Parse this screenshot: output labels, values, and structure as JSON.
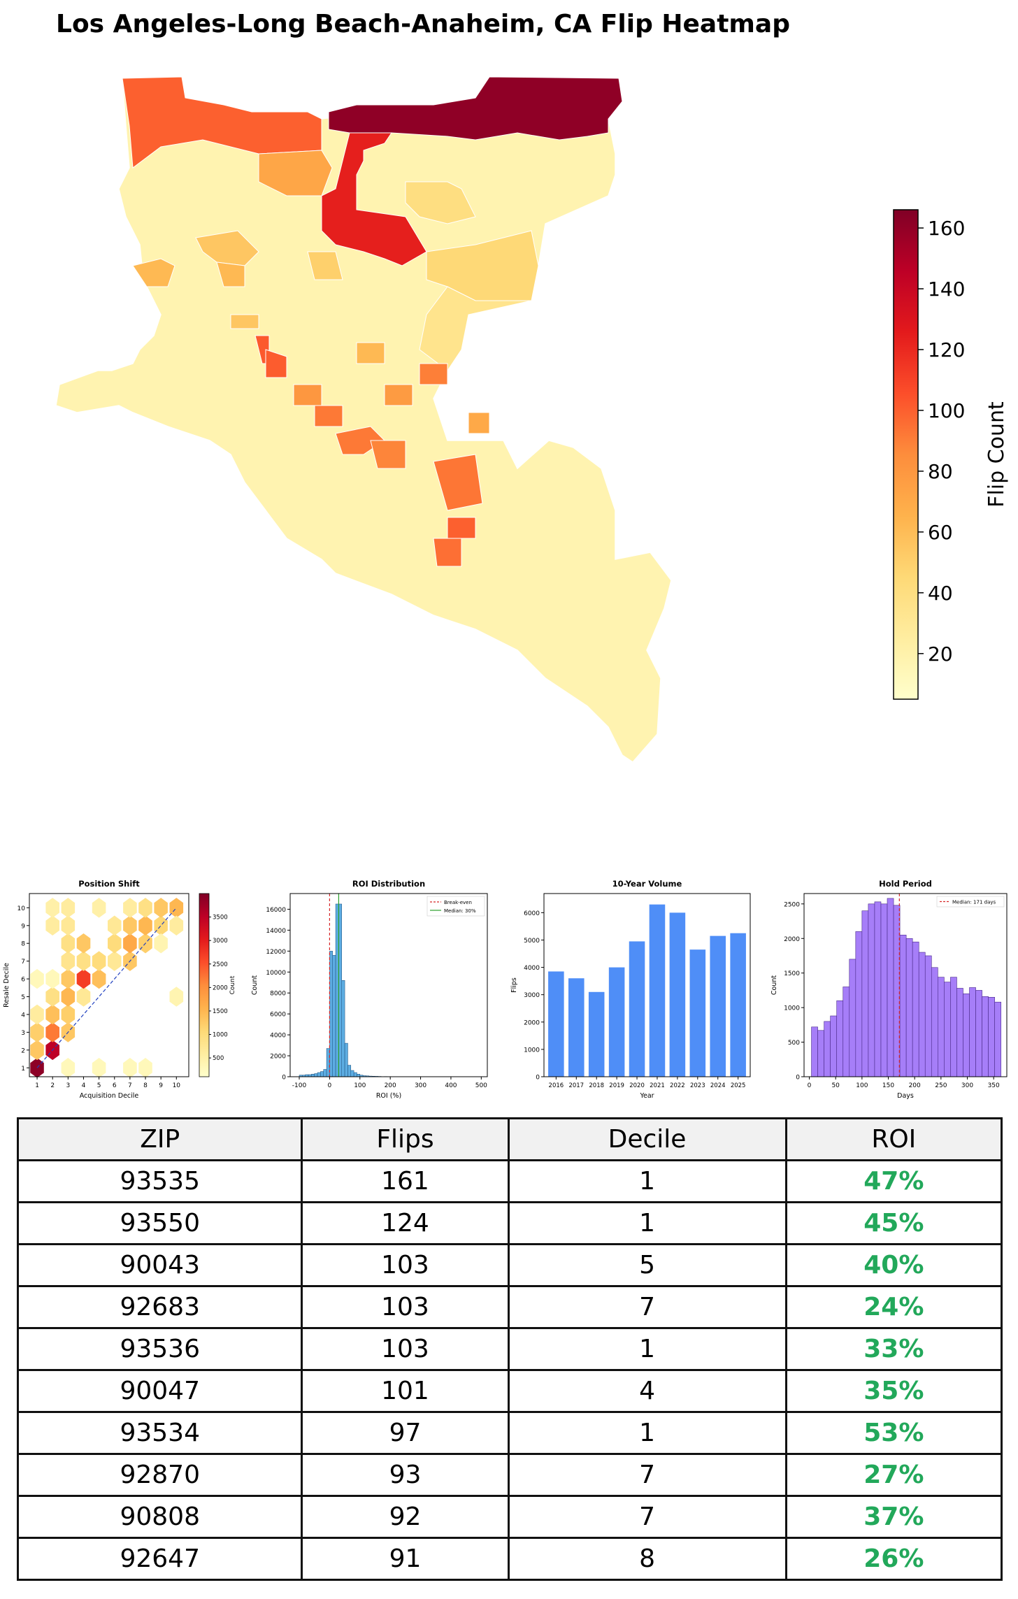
{
  "page": {
    "title": "Los Angeles-Long Beach-Anaheim, CA Flip Heatmap"
  },
  "colors": {
    "ylorrd": [
      "#ffffcc",
      "#ffeda0",
      "#fed976",
      "#feb24c",
      "#fd8d3c",
      "#fc4e2a",
      "#e31a1c",
      "#bd0026",
      "#800026"
    ],
    "roi_green": "#22a85a",
    "hist_blue": "#5dade2",
    "bar_blue": "#4f8ef7",
    "hold_purple": "#a67ef8",
    "median_red": "#d62728",
    "median_green": "#2ca02c",
    "diag_line": "#1f3fbf"
  },
  "map": {
    "colorbar": {
      "label": "Flip Count",
      "ticks": [
        20,
        40,
        60,
        80,
        100,
        120,
        140,
        160
      ],
      "range": [
        5,
        166
      ]
    }
  },
  "chart_data": [
    {
      "type": "heatmap",
      "title": "Position Shift",
      "xlabel": "Acquisition Decile",
      "ylabel": "Resale Decile",
      "xticks": [
        1,
        2,
        3,
        4,
        5,
        6,
        7,
        8,
        9,
        10
      ],
      "yticks": [
        1,
        2,
        3,
        4,
        5,
        6,
        7,
        8,
        9,
        10
      ],
      "colorbar_label": "Count",
      "colorbar_ticks": [
        500,
        1000,
        1500,
        2000,
        2500,
        3000,
        3500
      ],
      "colorbar_range": [
        100,
        4000
      ],
      "reference_line": "y = x (dashed)",
      "cells": [
        {
          "x": 1,
          "y": 1,
          "v": 3900
        },
        {
          "x": 2,
          "y": 2,
          "v": 3500
        },
        {
          "x": 1,
          "y": 2,
          "v": 1300
        },
        {
          "x": 2,
          "y": 3,
          "v": 2200
        },
        {
          "x": 1,
          "y": 3,
          "v": 1200
        },
        {
          "x": 3,
          "y": 3,
          "v": 1300
        },
        {
          "x": 2,
          "y": 4,
          "v": 1400
        },
        {
          "x": 3,
          "y": 4,
          "v": 1200
        },
        {
          "x": 1,
          "y": 4,
          "v": 600
        },
        {
          "x": 3,
          "y": 5,
          "v": 1500
        },
        {
          "x": 2,
          "y": 5,
          "v": 900
        },
        {
          "x": 4,
          "y": 5,
          "v": 700
        },
        {
          "x": 4,
          "y": 6,
          "v": 2700
        },
        {
          "x": 5,
          "y": 6,
          "v": 1400
        },
        {
          "x": 3,
          "y": 6,
          "v": 1300
        },
        {
          "x": 3,
          "y": 7,
          "v": 800
        },
        {
          "x": 6,
          "y": 7,
          "v": 700
        },
        {
          "x": 4,
          "y": 7,
          "v": 900
        },
        {
          "x": 5,
          "y": 7,
          "v": 1000
        },
        {
          "x": 7,
          "y": 7,
          "v": 1300
        },
        {
          "x": 3,
          "y": 8,
          "v": 900
        },
        {
          "x": 4,
          "y": 8,
          "v": 1300
        },
        {
          "x": 6,
          "y": 8,
          "v": 1000
        },
        {
          "x": 7,
          "y": 8,
          "v": 1700
        },
        {
          "x": 8,
          "y": 8,
          "v": 1200
        },
        {
          "x": 2,
          "y": 9,
          "v": 600
        },
        {
          "x": 3,
          "y": 9,
          "v": 700
        },
        {
          "x": 6,
          "y": 9,
          "v": 700
        },
        {
          "x": 7,
          "y": 9,
          "v": 1300
        },
        {
          "x": 8,
          "y": 9,
          "v": 1500
        },
        {
          "x": 9,
          "y": 9,
          "v": 1100
        },
        {
          "x": 2,
          "y": 10,
          "v": 500
        },
        {
          "x": 3,
          "y": 10,
          "v": 600
        },
        {
          "x": 5,
          "y": 10,
          "v": 500
        },
        {
          "x": 7,
          "y": 10,
          "v": 600
        },
        {
          "x": 8,
          "y": 10,
          "v": 900
        },
        {
          "x": 9,
          "y": 10,
          "v": 1300
        },
        {
          "x": 10,
          "y": 10,
          "v": 1500
        },
        {
          "x": 10,
          "y": 5,
          "v": 400
        },
        {
          "x": 1,
          "y": 6,
          "v": 300
        },
        {
          "x": 2,
          "y": 6,
          "v": 300
        },
        {
          "x": 5,
          "y": 1,
          "v": 300
        },
        {
          "x": 7,
          "y": 1,
          "v": 300
        },
        {
          "x": 8,
          "y": 1,
          "v": 300
        },
        {
          "x": 3,
          "y": 1,
          "v": 300
        },
        {
          "x": 9,
          "y": 8,
          "v": 400
        },
        {
          "x": 10,
          "y": 9,
          "v": 600
        }
      ]
    },
    {
      "type": "bar",
      "title": "ROI Distribution",
      "xlabel": "ROI (%)",
      "ylabel": "Count",
      "xlim": [
        -130,
        520
      ],
      "ylim": [
        0,
        17500
      ],
      "xticks": [
        -100,
        0,
        100,
        200,
        300,
        400,
        500
      ],
      "yticks": [
        0,
        2000,
        4000,
        6000,
        8000,
        10000,
        12000,
        14000,
        16000
      ],
      "bin_width": 10,
      "bins": [
        {
          "x0": -100,
          "v": 150
        },
        {
          "x0": -90,
          "v": 150
        },
        {
          "x0": -80,
          "v": 200
        },
        {
          "x0": -70,
          "v": 200
        },
        {
          "x0": -60,
          "v": 250
        },
        {
          "x0": -50,
          "v": 300
        },
        {
          "x0": -40,
          "v": 400
        },
        {
          "x0": -30,
          "v": 500
        },
        {
          "x0": -20,
          "v": 700
        },
        {
          "x0": -10,
          "v": 2700
        },
        {
          "x0": 0,
          "v": 12000
        },
        {
          "x0": 10,
          "v": 11600
        },
        {
          "x0": 20,
          "v": 16500
        },
        {
          "x0": 30,
          "v": 16500
        },
        {
          "x0": 40,
          "v": 9200
        },
        {
          "x0": 50,
          "v": 3200
        },
        {
          "x0": 60,
          "v": 1100
        },
        {
          "x0": 70,
          "v": 600
        },
        {
          "x0": 80,
          "v": 400
        },
        {
          "x0": 90,
          "v": 250
        },
        {
          "x0": 100,
          "v": 150
        },
        {
          "x0": 110,
          "v": 100
        },
        {
          "x0": 120,
          "v": 80
        },
        {
          "x0": 130,
          "v": 60
        },
        {
          "x0": 140,
          "v": 50
        },
        {
          "x0": 150,
          "v": 40
        },
        {
          "x0": 160,
          "v": 30
        },
        {
          "x0": 180,
          "v": 20
        },
        {
          "x0": 200,
          "v": 15
        },
        {
          "x0": 250,
          "v": 10
        },
        {
          "x0": 300,
          "v": 10
        },
        {
          "x0": 400,
          "v": 5
        },
        {
          "x0": 490,
          "v": 5
        }
      ],
      "legend": [
        "Break-even",
        "Median: 30%"
      ],
      "legend_position": "top-right",
      "break_even": 0,
      "median": 30
    },
    {
      "type": "bar",
      "title": "10-Year Volume",
      "xlabel": "Year",
      "ylabel": "Flips",
      "categories": [
        "2016",
        "2017",
        "2018",
        "2019",
        "2020",
        "2021",
        "2022",
        "2023",
        "2024",
        "2025"
      ],
      "values": [
        3850,
        3600,
        3100,
        4000,
        4950,
        6300,
        6000,
        4650,
        5150,
        5250
      ],
      "ylim": [
        0,
        6700
      ],
      "yticks": [
        0,
        1000,
        2000,
        3000,
        4000,
        5000,
        6000
      ]
    },
    {
      "type": "bar",
      "title": "Hold Period",
      "xlabel": "Days",
      "ylabel": "Count",
      "xlim": [
        -10,
        375
      ],
      "ylim": [
        0,
        2650
      ],
      "xticks": [
        0,
        50,
        100,
        150,
        200,
        250,
        300,
        350
      ],
      "yticks": [
        0,
        500,
        1000,
        1500,
        2000,
        2500
      ],
      "bin_width": 12,
      "bins": [
        {
          "x0": 4,
          "v": 720
        },
        {
          "x0": 16,
          "v": 670
        },
        {
          "x0": 28,
          "v": 800
        },
        {
          "x0": 40,
          "v": 880
        },
        {
          "x0": 52,
          "v": 1100
        },
        {
          "x0": 64,
          "v": 1300
        },
        {
          "x0": 76,
          "v": 1700
        },
        {
          "x0": 88,
          "v": 2100
        },
        {
          "x0": 100,
          "v": 2400
        },
        {
          "x0": 112,
          "v": 2500
        },
        {
          "x0": 124,
          "v": 2530
        },
        {
          "x0": 136,
          "v": 2500
        },
        {
          "x0": 148,
          "v": 2580
        },
        {
          "x0": 160,
          "v": 2480
        },
        {
          "x0": 172,
          "v": 2050
        },
        {
          "x0": 184,
          "v": 2000
        },
        {
          "x0": 196,
          "v": 1950
        },
        {
          "x0": 208,
          "v": 1800
        },
        {
          "x0": 220,
          "v": 1750
        },
        {
          "x0": 232,
          "v": 1580
        },
        {
          "x0": 244,
          "v": 1440
        },
        {
          "x0": 256,
          "v": 1370
        },
        {
          "x0": 268,
          "v": 1440
        },
        {
          "x0": 280,
          "v": 1280
        },
        {
          "x0": 292,
          "v": 1200
        },
        {
          "x0": 304,
          "v": 1290
        },
        {
          "x0": 316,
          "v": 1250
        },
        {
          "x0": 328,
          "v": 1160
        },
        {
          "x0": 340,
          "v": 1150
        },
        {
          "x0": 352,
          "v": 1080
        }
      ],
      "legend": [
        "Median: 171 days"
      ],
      "legend_position": "top-right",
      "median": 171
    }
  ],
  "table": {
    "headers": [
      "ZIP",
      "Flips",
      "Decile",
      "ROI"
    ],
    "rows": [
      [
        "93535",
        "161",
        "1",
        "47%"
      ],
      [
        "93550",
        "124",
        "1",
        "45%"
      ],
      [
        "90043",
        "103",
        "5",
        "40%"
      ],
      [
        "92683",
        "103",
        "7",
        "24%"
      ],
      [
        "93536",
        "103",
        "1",
        "33%"
      ],
      [
        "90047",
        "101",
        "4",
        "35%"
      ],
      [
        "93534",
        "97",
        "1",
        "53%"
      ],
      [
        "92870",
        "93",
        "7",
        "27%"
      ],
      [
        "90808",
        "92",
        "7",
        "37%"
      ],
      [
        "92647",
        "91",
        "8",
        "26%"
      ]
    ]
  }
}
